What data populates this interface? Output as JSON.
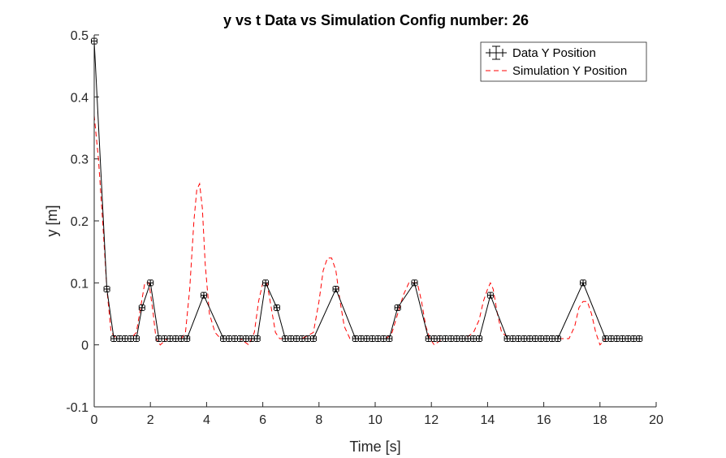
{
  "chart_data": {
    "type": "line",
    "title": "y vs t Data vs Simulation Config number: 26",
    "xlabel": "Time [s]",
    "ylabel": "y [m]",
    "xlim": [
      0,
      20
    ],
    "ylim": [
      -0.1,
      0.5
    ],
    "xticks": [
      0,
      2,
      4,
      6,
      8,
      10,
      12,
      14,
      16,
      18,
      20
    ],
    "yticks": [
      -0.1,
      0,
      0.1,
      0.2,
      0.3,
      0.4,
      0.5
    ],
    "xtick_labels": [
      "0",
      "2",
      "4",
      "6",
      "8",
      "10",
      "12",
      "14",
      "16",
      "18",
      "20"
    ],
    "ytick_labels": [
      "-0.1",
      "0",
      "0.1",
      "0.2",
      "0.3",
      "0.4",
      "0.5"
    ],
    "legend_position": "top-right",
    "series": [
      {
        "name": "Data Y Position",
        "style": "solid-with-errorbars",
        "color": "#000000",
        "x": [
          0.0,
          0.45,
          0.7,
          0.9,
          1.1,
          1.3,
          1.5,
          1.7,
          2.0,
          2.3,
          2.5,
          2.7,
          2.9,
          3.1,
          3.3,
          3.9,
          4.6,
          4.8,
          5.0,
          5.2,
          5.4,
          5.6,
          5.8,
          6.1,
          6.5,
          6.8,
          7.0,
          7.2,
          7.4,
          7.6,
          7.8,
          8.6,
          9.3,
          9.5,
          9.7,
          9.9,
          10.1,
          10.3,
          10.5,
          10.8,
          11.4,
          11.9,
          12.1,
          12.3,
          12.5,
          12.7,
          12.9,
          13.1,
          13.3,
          13.5,
          13.7,
          14.1,
          14.7,
          14.9,
          15.1,
          15.3,
          15.5,
          15.7,
          15.9,
          16.1,
          16.3,
          16.5,
          17.4,
          18.2,
          18.4,
          18.6,
          18.8,
          19.0,
          19.2,
          19.4
        ],
        "y": [
          0.49,
          0.09,
          0.01,
          0.01,
          0.01,
          0.01,
          0.01,
          0.06,
          0.1,
          0.01,
          0.01,
          0.01,
          0.01,
          0.01,
          0.01,
          0.08,
          0.01,
          0.01,
          0.01,
          0.01,
          0.01,
          0.01,
          0.01,
          0.1,
          0.06,
          0.01,
          0.01,
          0.01,
          0.01,
          0.01,
          0.01,
          0.09,
          0.01,
          0.01,
          0.01,
          0.01,
          0.01,
          0.01,
          0.01,
          0.06,
          0.1,
          0.01,
          0.01,
          0.01,
          0.01,
          0.01,
          0.01,
          0.01,
          0.01,
          0.01,
          0.01,
          0.08,
          0.01,
          0.01,
          0.01,
          0.01,
          0.01,
          0.01,
          0.01,
          0.01,
          0.01,
          0.01,
          0.1,
          0.01,
          0.01,
          0.01,
          0.01,
          0.01,
          0.01,
          0.01
        ]
      },
      {
        "name": "Simulation Y Position",
        "style": "dashed",
        "color": "#ff0000",
        "x": [
          0.0,
          0.15,
          0.3,
          0.45,
          0.6,
          0.8,
          1.0,
          1.3,
          1.5,
          1.65,
          1.8,
          1.95,
          2.1,
          2.2,
          2.35,
          2.6,
          2.9,
          3.1,
          3.25,
          3.4,
          3.55,
          3.65,
          3.75,
          3.85,
          3.95,
          4.1,
          4.3,
          4.5,
          4.8,
          5.2,
          5.5,
          5.7,
          5.85,
          6.0,
          6.15,
          6.3,
          6.45,
          6.6,
          6.8,
          7.0,
          7.4,
          7.8,
          8.0,
          8.15,
          8.3,
          8.45,
          8.6,
          8.75,
          8.9,
          9.1,
          9.3,
          9.5,
          9.8,
          10.1,
          10.4,
          10.6,
          10.8,
          11.0,
          11.2,
          11.35,
          11.5,
          11.65,
          11.8,
          11.95,
          12.1,
          12.4,
          12.8,
          13.2,
          13.5,
          13.7,
          13.85,
          14.0,
          14.1,
          14.2,
          14.35,
          14.5,
          14.8,
          15.2,
          15.6,
          16.0,
          16.4,
          16.7,
          16.9,
          17.1,
          17.25,
          17.4,
          17.55,
          17.7,
          17.85,
          18.0,
          18.2,
          18.5,
          19.0,
          19.5
        ],
        "y": [
          0.37,
          0.3,
          0.2,
          0.09,
          0.02,
          0.01,
          0.01,
          0.01,
          0.02,
          0.06,
          0.1,
          0.1,
          0.05,
          0.01,
          0.0,
          0.01,
          0.01,
          0.01,
          0.02,
          0.09,
          0.2,
          0.25,
          0.26,
          0.22,
          0.13,
          0.05,
          0.02,
          0.01,
          0.01,
          0.01,
          0.0,
          0.02,
          0.07,
          0.1,
          0.1,
          0.06,
          0.02,
          0.01,
          0.01,
          0.01,
          0.01,
          0.02,
          0.07,
          0.12,
          0.14,
          0.14,
          0.12,
          0.07,
          0.03,
          0.01,
          0.01,
          0.01,
          0.01,
          0.01,
          0.01,
          0.02,
          0.05,
          0.08,
          0.1,
          0.1,
          0.1,
          0.07,
          0.03,
          0.01,
          0.0,
          0.01,
          0.01,
          0.01,
          0.02,
          0.04,
          0.07,
          0.09,
          0.1,
          0.09,
          0.05,
          0.02,
          0.01,
          0.01,
          0.01,
          0.01,
          0.01,
          0.01,
          0.01,
          0.03,
          0.06,
          0.07,
          0.07,
          0.05,
          0.02,
          0.0,
          0.01,
          0.01,
          0.01,
          0.01
        ]
      }
    ]
  }
}
